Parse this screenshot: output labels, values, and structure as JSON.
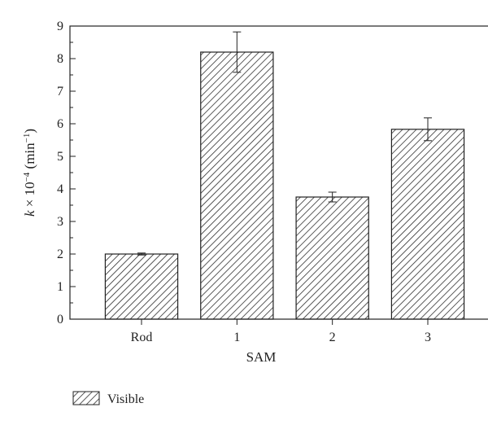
{
  "chart_data": {
    "type": "bar",
    "categories": [
      "Rod",
      "1",
      "2",
      "3"
    ],
    "series": [
      {
        "name": "Visible",
        "values": [
          2.0,
          8.2,
          3.75,
          5.83
        ],
        "errors": [
          0.03,
          0.62,
          0.15,
          0.35
        ]
      }
    ],
    "xlabel": "SAM",
    "ylabel_parts": {
      "k": "k",
      "times_ten": " × 10",
      "exp": "−4",
      "unit_open": " (min",
      "unit_exp": "−1",
      "unit_close": ")"
    },
    "ylim": [
      0,
      9
    ],
    "yticks": [
      "0",
      "1",
      "2",
      "3",
      "4",
      "5",
      "6",
      "7",
      "8",
      "9"
    ],
    "grid": false,
    "legend_position": "bottom-left",
    "bar_fill": "hatched"
  }
}
